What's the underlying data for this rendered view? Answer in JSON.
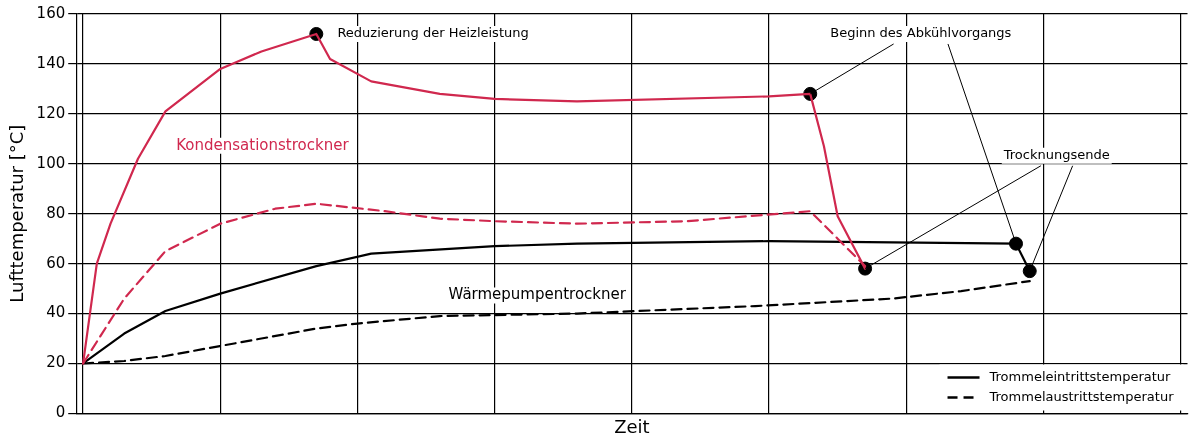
{
  "chart_data": {
    "type": "line",
    "xlabel": "Zeit",
    "ylabel": "Lufttemperatur [°C]",
    "categories": [
      null,
      null,
      null,
      null,
      null,
      null,
      null,
      null,
      null,
      null,
      null,
      null,
      null,
      null,
      null,
      null,
      null,
      null,
      null,
      null,
      null,
      null,
      null,
      null,
      null,
      null,
      null,
      null,
      null,
      null,
      null,
      null,
      null,
      null,
      null,
      null,
      null,
      null,
      null,
      null,
      null,
      null,
      null,
      null,
      null,
      null,
      null,
      null,
      null,
      null,
      null,
      null,
      null,
      null,
      null,
      null,
      null,
      null,
      null,
      null,
      null,
      null,
      null,
      null,
      null,
      null,
      null,
      null,
      null,
      null,
      null,
      null,
      null,
      null,
      null,
      null,
      null,
      null,
      null,
      null,
      null
    ],
    "ylim": [
      0,
      160
    ],
    "yticks": [
      0,
      20,
      40,
      60,
      80,
      100,
      120,
      140,
      160
    ],
    "grid": true,
    "legend": "bottom right",
    "marker": "none",
    "series": [
      {
        "color": "#d0284e",
        "line_style": "solid",
        "values": [
          20,
          60,
          76,
          null,
          102,
          null,
          121,
          null,
          null,
          null,
          138,
          null,
          null,
          145,
          null,
          null,
          null,
          152,
          142,
          null,
          null,
          133,
          null,
          null,
          null,
          null,
          128,
          null,
          null,
          null,
          126,
          null,
          null,
          null,
          null,
          null,
          125,
          null,
          null,
          null,
          null,
          null,
          null,
          null,
          null,
          null,
          null,
          null,
          null,
          null,
          127,
          null,
          null,
          128,
          107,
          79,
          null,
          58,
          null,
          null,
          null,
          null,
          null,
          null,
          null,
          null,
          null,
          null,
          null,
          null,
          null,
          null,
          null,
          null,
          null,
          null,
          null,
          null,
          null,
          null,
          null
        ]
      },
      {
        "color": "#d0284e",
        "line_style": "dashed",
        "values": [
          20,
          null,
          null,
          46,
          null,
          null,
          65,
          null,
          null,
          null,
          76,
          null,
          null,
          null,
          82,
          null,
          null,
          84,
          null,
          null,
          null,
          null,
          81,
          null,
          null,
          null,
          78,
          null,
          null,
          null,
          77,
          null,
          null,
          null,
          null,
          null,
          76,
          null,
          null,
          null,
          null,
          null,
          null,
          null,
          77,
          null,
          null,
          null,
          null,
          null,
          null,
          null,
          null,
          81,
          null,
          70,
          null,
          59,
          null,
          null,
          null,
          null,
          null,
          null,
          null,
          null,
          null,
          null,
          null,
          null,
          null,
          null,
          null,
          null,
          null,
          null,
          null,
          null,
          null,
          null,
          null
        ]
      },
      {
        "name": "Trommeleintrittstemperatur",
        "color": "#000000",
        "line_style": "solid",
        "values": [
          20,
          null,
          null,
          32,
          null,
          null,
          41,
          null,
          null,
          null,
          48,
          null,
          null,
          null,
          null,
          null,
          null,
          59,
          null,
          null,
          null,
          64,
          null,
          null,
          null,
          null,
          null,
          null,
          null,
          null,
          67,
          null,
          null,
          null,
          null,
          null,
          68,
          null,
          null,
          null,
          null,
          null,
          null,
          null,
          null,
          null,
          null,
          null,
          null,
          null,
          69,
          null,
          null,
          null,
          null,
          null,
          null,
          null,
          null,
          null,
          null,
          null,
          null,
          null,
          null,
          null,
          null,
          null,
          68,
          57,
          null,
          null,
          null,
          null,
          null,
          null,
          null,
          null,
          null,
          null,
          null
        ]
      },
      {
        "name": "Trommelaustrittstemperatur",
        "color": "#000000",
        "line_style": "dashed",
        "values": [
          20,
          null,
          null,
          21,
          null,
          null,
          23,
          null,
          null,
          null,
          27,
          null,
          null,
          null,
          null,
          null,
          null,
          34,
          null,
          null,
          36,
          null,
          null,
          null,
          null,
          null,
          39,
          null,
          null,
          null,
          null,
          null,
          null,
          null,
          null,
          null,
          40,
          null,
          null,
          null,
          null,
          null,
          null,
          null,
          null,
          null,
          null,
          null,
          null,
          43,
          null,
          null,
          null,
          null,
          null,
          null,
          null,
          null,
          null,
          46,
          null,
          null,
          null,
          null,
          49,
          null,
          null,
          null,
          null,
          53,
          null,
          null,
          null,
          null,
          null,
          null,
          null,
          null,
          null,
          null,
          null
        ]
      },
      {
        "type": "scatter",
        "color": "#000000",
        "marker": "circle",
        "values": [
          null,
          null,
          null,
          null,
          null,
          null,
          null,
          null,
          null,
          null,
          null,
          null,
          null,
          null,
          null,
          null,
          null,
          152,
          null,
          null,
          null,
          null,
          null,
          null,
          null,
          null,
          null,
          null,
          null,
          null,
          null,
          null,
          null,
          null,
          null,
          null,
          null,
          null,
          null,
          null,
          null,
          null,
          null,
          null,
          null,
          null,
          null,
          null,
          null,
          null,
          null,
          null,
          null,
          128,
          null,
          null,
          null,
          58,
          null,
          null,
          null,
          null,
          null,
          null,
          null,
          null,
          null,
          null,
          68,
          57,
          null,
          null,
          null,
          null,
          null,
          null,
          null,
          null,
          null,
          null,
          null
        ]
      }
    ],
    "annotations": [
      "Reduzierung der Heizleistung",
      "Beginn des Abkühlvorgangs",
      "Trocknungsende",
      "Kondensationstrockner",
      "Wärmepumpentrockner"
    ]
  }
}
